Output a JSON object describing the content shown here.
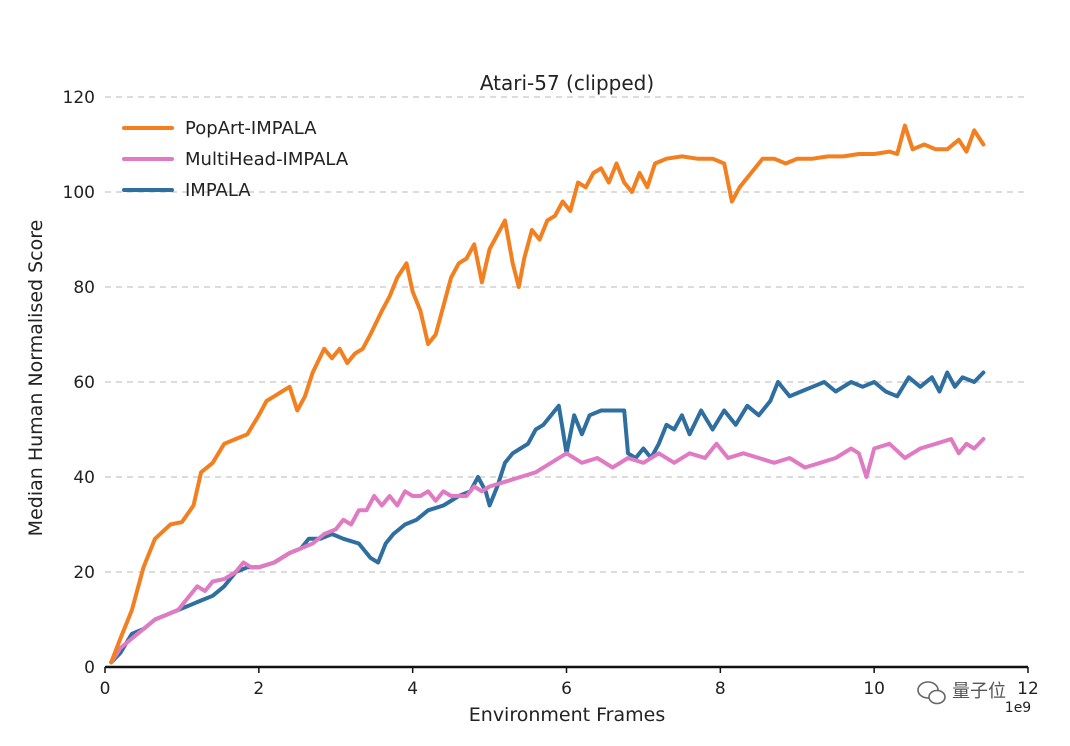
{
  "chart_data": {
    "type": "line",
    "title": "Atari-57 (clipped)",
    "xlabel": "Environment Frames",
    "ylabel": "Median Human Normalised Score",
    "x_exponent_label": "1e9",
    "xlim": [
      0,
      12
    ],
    "ylim": [
      0,
      120
    ],
    "x_ticks": [
      0,
      2,
      4,
      6,
      8,
      10,
      12
    ],
    "y_ticks": [
      0,
      20,
      40,
      60,
      80,
      100,
      120
    ],
    "grid": "horizontal-dashed",
    "legend_position": "top-left",
    "series": [
      {
        "name": "PopArt-IMPALA",
        "color": "#f28020",
        "points": [
          [
            0.08,
            1
          ],
          [
            0.2,
            6
          ],
          [
            0.35,
            12
          ],
          [
            0.5,
            21
          ],
          [
            0.65,
            27
          ],
          [
            0.85,
            30
          ],
          [
            1.0,
            30.5
          ],
          [
            1.15,
            34
          ],
          [
            1.25,
            41
          ],
          [
            1.4,
            43
          ],
          [
            1.55,
            47
          ],
          [
            1.7,
            48
          ],
          [
            1.85,
            49
          ],
          [
            2.0,
            53
          ],
          [
            2.1,
            56
          ],
          [
            2.2,
            57
          ],
          [
            2.3,
            58
          ],
          [
            2.4,
            59
          ],
          [
            2.5,
            54
          ],
          [
            2.6,
            57
          ],
          [
            2.7,
            62
          ],
          [
            2.85,
            67
          ],
          [
            2.95,
            65
          ],
          [
            3.05,
            67
          ],
          [
            3.15,
            64
          ],
          [
            3.25,
            66
          ],
          [
            3.35,
            67
          ],
          [
            3.45,
            70
          ],
          [
            3.6,
            75
          ],
          [
            3.7,
            78
          ],
          [
            3.8,
            82
          ],
          [
            3.92,
            85
          ],
          [
            4.0,
            79
          ],
          [
            4.1,
            75
          ],
          [
            4.2,
            68
          ],
          [
            4.3,
            70
          ],
          [
            4.4,
            76
          ],
          [
            4.5,
            82
          ],
          [
            4.6,
            85
          ],
          [
            4.7,
            86
          ],
          [
            4.8,
            89
          ],
          [
            4.9,
            81
          ],
          [
            5.0,
            88
          ],
          [
            5.1,
            91
          ],
          [
            5.2,
            94
          ],
          [
            5.3,
            85
          ],
          [
            5.38,
            80
          ],
          [
            5.45,
            86
          ],
          [
            5.55,
            92
          ],
          [
            5.65,
            90
          ],
          [
            5.75,
            94
          ],
          [
            5.85,
            95
          ],
          [
            5.95,
            98
          ],
          [
            6.05,
            96
          ],
          [
            6.15,
            102
          ],
          [
            6.25,
            101
          ],
          [
            6.35,
            104
          ],
          [
            6.45,
            105
          ],
          [
            6.55,
            102
          ],
          [
            6.65,
            106
          ],
          [
            6.75,
            102
          ],
          [
            6.85,
            100
          ],
          [
            6.95,
            104
          ],
          [
            7.05,
            101
          ],
          [
            7.15,
            106
          ],
          [
            7.3,
            107
          ],
          [
            7.5,
            107.5
          ],
          [
            7.7,
            107
          ],
          [
            7.9,
            107
          ],
          [
            8.05,
            106
          ],
          [
            8.15,
            98
          ],
          [
            8.25,
            101
          ],
          [
            8.4,
            104
          ],
          [
            8.55,
            107
          ],
          [
            8.7,
            107
          ],
          [
            8.85,
            106
          ],
          [
            9.0,
            107
          ],
          [
            9.2,
            107
          ],
          [
            9.4,
            107.5
          ],
          [
            9.6,
            107.5
          ],
          [
            9.8,
            108
          ],
          [
            10.0,
            108
          ],
          [
            10.2,
            108.5
          ],
          [
            10.3,
            108
          ],
          [
            10.4,
            114
          ],
          [
            10.5,
            109
          ],
          [
            10.65,
            110
          ],
          [
            10.8,
            109
          ],
          [
            10.95,
            109
          ],
          [
            11.1,
            111
          ],
          [
            11.2,
            108.5
          ],
          [
            11.3,
            113
          ],
          [
            11.42,
            110
          ]
        ]
      },
      {
        "name": "MultiHead-IMPALA",
        "color": "#e07ac2",
        "points": [
          [
            0.08,
            1
          ],
          [
            0.2,
            4
          ],
          [
            0.35,
            6
          ],
          [
            0.5,
            8
          ],
          [
            0.65,
            10
          ],
          [
            0.8,
            11
          ],
          [
            0.95,
            12
          ],
          [
            1.1,
            15
          ],
          [
            1.2,
            17
          ],
          [
            1.3,
            16
          ],
          [
            1.4,
            18
          ],
          [
            1.55,
            18.5
          ],
          [
            1.7,
            20
          ],
          [
            1.8,
            22
          ],
          [
            1.9,
            21
          ],
          [
            2.0,
            21
          ],
          [
            2.2,
            22
          ],
          [
            2.4,
            24
          ],
          [
            2.55,
            25
          ],
          [
            2.7,
            26
          ],
          [
            2.85,
            28
          ],
          [
            3.0,
            29
          ],
          [
            3.1,
            31
          ],
          [
            3.2,
            30
          ],
          [
            3.3,
            33
          ],
          [
            3.4,
            33
          ],
          [
            3.5,
            36
          ],
          [
            3.6,
            34
          ],
          [
            3.7,
            36
          ],
          [
            3.8,
            34
          ],
          [
            3.9,
            37
          ],
          [
            4.0,
            36
          ],
          [
            4.1,
            36
          ],
          [
            4.2,
            37
          ],
          [
            4.3,
            35
          ],
          [
            4.4,
            37
          ],
          [
            4.5,
            36
          ],
          [
            4.6,
            36
          ],
          [
            4.7,
            36
          ],
          [
            4.8,
            38
          ],
          [
            4.9,
            37
          ],
          [
            5.0,
            38
          ],
          [
            5.2,
            39
          ],
          [
            5.4,
            40
          ],
          [
            5.6,
            41
          ],
          [
            5.8,
            43
          ],
          [
            6.0,
            45
          ],
          [
            6.2,
            43
          ],
          [
            6.4,
            44
          ],
          [
            6.6,
            42
          ],
          [
            6.8,
            44
          ],
          [
            7.0,
            43
          ],
          [
            7.2,
            45
          ],
          [
            7.4,
            43
          ],
          [
            7.6,
            45
          ],
          [
            7.8,
            44
          ],
          [
            7.95,
            47
          ],
          [
            8.1,
            44
          ],
          [
            8.3,
            45
          ],
          [
            8.5,
            44
          ],
          [
            8.7,
            43
          ],
          [
            8.9,
            44
          ],
          [
            9.1,
            42
          ],
          [
            9.3,
            43
          ],
          [
            9.5,
            44
          ],
          [
            9.7,
            46
          ],
          [
            9.8,
            45
          ],
          [
            9.9,
            40
          ],
          [
            10.0,
            46
          ],
          [
            10.2,
            47
          ],
          [
            10.4,
            44
          ],
          [
            10.6,
            46
          ],
          [
            10.8,
            47
          ],
          [
            11.0,
            48
          ],
          [
            11.1,
            45
          ],
          [
            11.2,
            47
          ],
          [
            11.3,
            46
          ],
          [
            11.42,
            48
          ]
        ]
      },
      {
        "name": "IMPALA",
        "color": "#2f6fa0",
        "points": [
          [
            0.08,
            1
          ],
          [
            0.2,
            3
          ],
          [
            0.35,
            7
          ],
          [
            0.5,
            8
          ],
          [
            0.65,
            10
          ],
          [
            0.8,
            11
          ],
          [
            0.95,
            12
          ],
          [
            1.1,
            13
          ],
          [
            1.25,
            14
          ],
          [
            1.4,
            15
          ],
          [
            1.55,
            17
          ],
          [
            1.7,
            20
          ],
          [
            1.85,
            21
          ],
          [
            2.0,
            21
          ],
          [
            2.2,
            22
          ],
          [
            2.4,
            24
          ],
          [
            2.55,
            25
          ],
          [
            2.65,
            27
          ],
          [
            2.8,
            27
          ],
          [
            2.95,
            28
          ],
          [
            3.1,
            27
          ],
          [
            3.3,
            26
          ],
          [
            3.45,
            23
          ],
          [
            3.55,
            22
          ],
          [
            3.65,
            26
          ],
          [
            3.75,
            28
          ],
          [
            3.9,
            30
          ],
          [
            4.05,
            31
          ],
          [
            4.2,
            33
          ],
          [
            4.4,
            34
          ],
          [
            4.6,
            36
          ],
          [
            4.75,
            37
          ],
          [
            4.85,
            40
          ],
          [
            4.95,
            37
          ],
          [
            5.0,
            34
          ],
          [
            5.1,
            38
          ],
          [
            5.2,
            43
          ],
          [
            5.3,
            45
          ],
          [
            5.4,
            46
          ],
          [
            5.5,
            47
          ],
          [
            5.6,
            50
          ],
          [
            5.7,
            51
          ],
          [
            5.8,
            53
          ],
          [
            5.9,
            55
          ],
          [
            5.95,
            50
          ],
          [
            6.0,
            45
          ],
          [
            6.1,
            53
          ],
          [
            6.2,
            49
          ],
          [
            6.3,
            53
          ],
          [
            6.45,
            54
          ],
          [
            6.6,
            54
          ],
          [
            6.75,
            54
          ],
          [
            6.8,
            45
          ],
          [
            6.9,
            44
          ],
          [
            7.0,
            46
          ],
          [
            7.1,
            44
          ],
          [
            7.2,
            47
          ],
          [
            7.3,
            51
          ],
          [
            7.4,
            50
          ],
          [
            7.5,
            53
          ],
          [
            7.6,
            49
          ],
          [
            7.75,
            54
          ],
          [
            7.9,
            50
          ],
          [
            8.05,
            54
          ],
          [
            8.2,
            51
          ],
          [
            8.35,
            55
          ],
          [
            8.5,
            53
          ],
          [
            8.65,
            56
          ],
          [
            8.75,
            60
          ],
          [
            8.9,
            57
          ],
          [
            9.05,
            58
          ],
          [
            9.2,
            59
          ],
          [
            9.35,
            60
          ],
          [
            9.5,
            58
          ],
          [
            9.7,
            60
          ],
          [
            9.85,
            59
          ],
          [
            10.0,
            60
          ],
          [
            10.15,
            58
          ],
          [
            10.3,
            57
          ],
          [
            10.45,
            61
          ],
          [
            10.6,
            59
          ],
          [
            10.75,
            61
          ],
          [
            10.85,
            58
          ],
          [
            10.95,
            62
          ],
          [
            11.05,
            59
          ],
          [
            11.15,
            61
          ],
          [
            11.3,
            60
          ],
          [
            11.42,
            62
          ]
        ]
      }
    ]
  },
  "watermark": {
    "text": "量子位",
    "icon": "wechat-icon"
  }
}
